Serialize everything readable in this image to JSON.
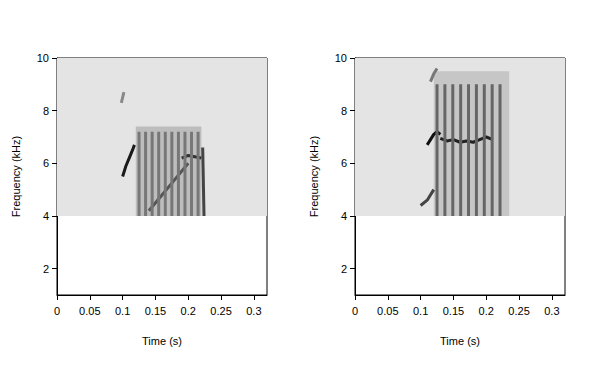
{
  "chart_data": [
    {
      "type": "line",
      "xlabel": "Time (s)",
      "ylabel": "Frequency (kHz)",
      "xlim": [
        0,
        0.32
      ],
      "ylim": [
        1,
        10
      ],
      "xticks": [
        0,
        0.05,
        0.1,
        0.15,
        0.2,
        0.25,
        0.3
      ],
      "yticks": [
        2,
        4,
        6,
        8,
        10
      ],
      "noise_bands": [
        {
          "x": [
            0,
            0.32
          ],
          "y": [
            4,
            10
          ],
          "color": "#e4e4e4"
        },
        {
          "x": [
            0.12,
            0.22
          ],
          "y": [
            4,
            7.4
          ],
          "color": "#bdbdbd"
        }
      ],
      "series": [
        {
          "color": "#1a1a1a",
          "x": [
            0.1,
            0.105,
            0.11,
            0.115,
            0.118
          ],
          "values": [
            5.5,
            5.9,
            6.2,
            6.5,
            6.7
          ]
        },
        {
          "color": "#888888",
          "x": [
            0.098,
            0.1,
            0.102
          ],
          "values": [
            8.3,
            8.5,
            8.7
          ]
        },
        {
          "color": "#555555",
          "x": [
            0.14,
            0.16,
            0.18,
            0.2
          ],
          "values": [
            4.2,
            4.8,
            5.4,
            6.0
          ]
        },
        {
          "color": "#333333",
          "x": [
            0.19,
            0.2,
            0.21,
            0.22
          ],
          "values": [
            6.2,
            6.3,
            6.25,
            6.2
          ]
        },
        {
          "color": "#777777",
          "x": [
            0.125,
            0.125,
            0.125,
            0.135,
            0.135,
            0.135,
            0.145,
            0.145,
            0.145,
            0.155,
            0.155,
            0.155,
            0.165,
            0.165,
            0.165,
            0.175,
            0.175,
            0.175,
            0.185,
            0.185,
            0.185,
            0.195,
            0.195,
            0.195,
            0.205,
            0.205,
            0.205,
            0.215,
            0.215
          ],
          "values": [
            4,
            7.2,
            null,
            4,
            7.2,
            null,
            4,
            7.2,
            null,
            4,
            7.2,
            null,
            4,
            7.2,
            null,
            4,
            7.2,
            null,
            4,
            7.2,
            null,
            4,
            7.2,
            null,
            4,
            7.2,
            null,
            4,
            7.2
          ]
        },
        {
          "color": "#444444",
          "x": [
            0.222,
            0.224
          ],
          "values": [
            6.6,
            4.0
          ]
        }
      ]
    },
    {
      "type": "line",
      "xlabel": "Time (s)",
      "ylabel": "Frequency (kHz)",
      "xlim": [
        0,
        0.32
      ],
      "ylim": [
        1,
        10
      ],
      "xticks": [
        0,
        0.05,
        0.1,
        0.15,
        0.2,
        0.25,
        0.3
      ],
      "yticks": [
        2,
        4,
        6,
        8,
        10
      ],
      "noise_bands": [
        {
          "x": [
            0,
            0.32
          ],
          "y": [
            4,
            10
          ],
          "color": "#e4e4e4"
        },
        {
          "x": [
            0.12,
            0.235
          ],
          "y": [
            4,
            9.5
          ],
          "color": "#c6c6c6"
        }
      ],
      "series": [
        {
          "color": "#111111",
          "x": [
            0.11,
            0.115,
            0.12,
            0.125,
            0.13
          ],
          "values": [
            6.7,
            6.9,
            7.1,
            7.2,
            7.1
          ]
        },
        {
          "color": "#222222",
          "x": [
            0.13,
            0.14,
            0.15,
            0.16,
            0.17,
            0.18,
            0.19,
            0.2,
            0.21
          ],
          "values": [
            6.95,
            6.85,
            6.9,
            6.8,
            6.85,
            6.8,
            6.9,
            7.0,
            6.9
          ]
        },
        {
          "color": "#444444",
          "x": [
            0.1,
            0.11,
            0.12
          ],
          "values": [
            4.4,
            4.6,
            5.0
          ]
        },
        {
          "color": "#777777",
          "x": [
            0.115,
            0.12,
            0.125
          ],
          "values": [
            9.1,
            9.4,
            9.6
          ]
        },
        {
          "color": "#666666",
          "x": [
            0.125,
            0.125,
            0.125,
            0.137,
            0.137,
            0.137,
            0.149,
            0.149,
            0.149,
            0.161,
            0.161,
            0.161,
            0.173,
            0.173,
            0.173,
            0.185,
            0.185,
            0.185,
            0.197,
            0.197,
            0.197,
            0.209,
            0.209,
            0.209,
            0.221,
            0.221
          ],
          "values": [
            4,
            9,
            null,
            4,
            9,
            null,
            4,
            9,
            null,
            4,
            9,
            null,
            4,
            9,
            null,
            4,
            9,
            null,
            4,
            9,
            null,
            4,
            9,
            null,
            4,
            9
          ]
        }
      ]
    }
  ]
}
